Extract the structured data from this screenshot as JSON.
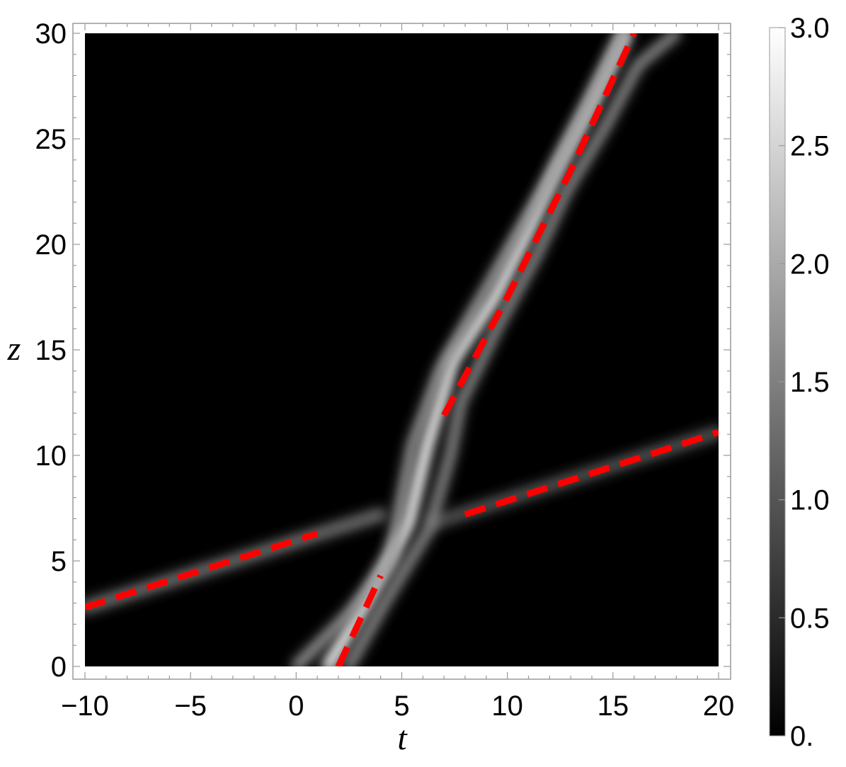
{
  "chart_data": {
    "type": "heatmap",
    "title": "",
    "xlabel": "t",
    "ylabel": "z",
    "xlim": [
      -10,
      20
    ],
    "ylim": [
      0,
      30
    ],
    "x_ticks": [
      -10,
      -5,
      0,
      5,
      10,
      15,
      20
    ],
    "x_tick_labels": [
      "−10",
      "−5",
      "0",
      "5",
      "10",
      "15",
      "20"
    ],
    "y_ticks": [
      0,
      5,
      10,
      15,
      20,
      25,
      30
    ],
    "y_tick_labels": [
      "0",
      "5",
      "10",
      "15",
      "20",
      "25",
      "30"
    ],
    "colorbar": {
      "range": [
        0,
        3
      ],
      "ticks": [
        0,
        0.5,
        1,
        1.5,
        2,
        2.5,
        3
      ],
      "tick_labels": [
        "0.",
        "0.5",
        "1.0",
        "1.5",
        "2.0",
        "2.5",
        "3.0"
      ],
      "colormap": "grayscale",
      "low_color": "#000000",
      "high_color": "#ffffff"
    },
    "background_color": "#000000",
    "guide_color": "#ff0000",
    "guide_lines": [
      {
        "name": "guide-1",
        "points": [
          [
            -10,
            2.8
          ],
          [
            1,
            6.3
          ]
        ]
      },
      {
        "name": "guide-2",
        "points": [
          [
            2,
            0
          ],
          [
            4,
            4.3
          ]
        ]
      },
      {
        "name": "guide-3",
        "points": [
          [
            7,
            11.9
          ],
          [
            10,
            17.5
          ],
          [
            13,
            23.5
          ],
          [
            16,
            30
          ]
        ]
      },
      {
        "name": "guide-4",
        "points": [
          [
            8,
            7.2
          ],
          [
            20,
            11.1
          ]
        ]
      }
    ],
    "bright_ridges": [
      {
        "name": "ridge-incoming-slow",
        "points": [
          [
            -10,
            2.8
          ],
          [
            4,
            7.2
          ]
        ],
        "width": 0.6,
        "intensity": 0.4
      },
      {
        "name": "ridge-outgoing-slow",
        "points": [
          [
            6.5,
            6.8
          ],
          [
            20,
            11.1
          ]
        ],
        "width": 0.6,
        "intensity": 0.3
      },
      {
        "name": "ridge-main",
        "points": [
          [
            1.5,
            0
          ],
          [
            3.3,
            3
          ],
          [
            5.3,
            6.8
          ],
          [
            6.2,
            10.5
          ],
          [
            7.4,
            14.5
          ],
          [
            9.4,
            17.5
          ],
          [
            10.9,
            20.5
          ],
          [
            12.3,
            23.5
          ],
          [
            13.9,
            26.5
          ],
          [
            15.6,
            30
          ]
        ],
        "width": 0.55,
        "intensity": 0.95
      },
      {
        "name": "ridge-side-left",
        "points": [
          [
            0,
            0
          ],
          [
            2.5,
            2.5
          ],
          [
            4.5,
            5
          ],
          [
            5,
            8
          ],
          [
            5.5,
            10.5
          ],
          [
            6.8,
            14
          ],
          [
            8.5,
            17
          ],
          [
            10.5,
            20.5
          ],
          [
            12,
            23
          ],
          [
            14,
            27
          ],
          [
            15.5,
            30
          ]
        ],
        "width": 0.45,
        "intensity": 0.6
      },
      {
        "name": "ridge-side-right",
        "points": [
          [
            2.5,
            0
          ],
          [
            4.2,
            3
          ],
          [
            6.3,
            6.5
          ],
          [
            7.3,
            10
          ],
          [
            7.8,
            12.5
          ],
          [
            9.5,
            16
          ],
          [
            11.4,
            19.5
          ],
          [
            12.8,
            22.5
          ],
          [
            14.6,
            25.5
          ],
          [
            16.2,
            28.5
          ],
          [
            18,
            30
          ]
        ],
        "width": 0.45,
        "intensity": 0.55
      }
    ]
  }
}
